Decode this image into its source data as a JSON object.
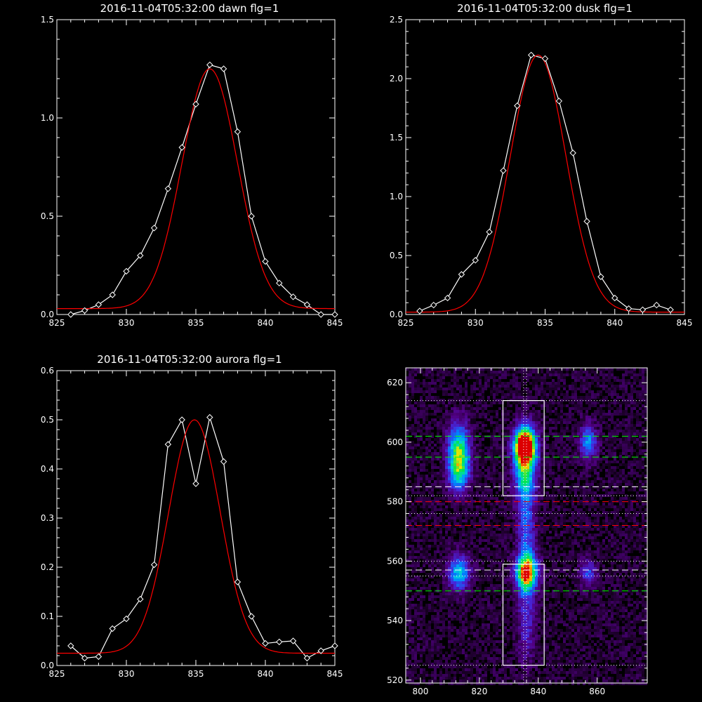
{
  "colors": {
    "background": "#000000",
    "axes": "#ffffff",
    "data_line": "#ffffff",
    "fit_line": "#ff0000",
    "green_lines": "#00ff00",
    "red_lines": "#ff0000",
    "white_lines": "#ffffff"
  },
  "chart_data": [
    {
      "type": "line",
      "title": "2016-11-04T05:32:00 dawn flg=1",
      "xlim": [
        825,
        845
      ],
      "ylim": [
        0,
        1.5
      ],
      "xticks": [
        825,
        830,
        835,
        840,
        845
      ],
      "xtick_labels": [
        "825",
        "830",
        "835",
        "840",
        "845"
      ],
      "yticks": [
        0,
        0.5,
        1.0,
        1.5
      ],
      "ytick_labels": [
        "0.0",
        "0.5",
        "1.0",
        "1.5"
      ],
      "series": [
        {
          "role": "data",
          "color": "#ffffff",
          "marker": "diamond",
          "x": [
            826,
            827,
            828,
            829,
            830,
            831,
            832,
            833,
            834,
            835,
            836,
            837,
            838,
            839,
            840,
            841,
            842,
            843,
            844,
            845
          ],
          "y": [
            0.0,
            0.02,
            0.05,
            0.1,
            0.22,
            0.3,
            0.44,
            0.64,
            0.85,
            1.07,
            1.27,
            1.25,
            0.93,
            0.5,
            0.27,
            0.16,
            0.09,
            0.05,
            0.0,
            0.0
          ]
        },
        {
          "role": "fit",
          "color": "#ff0000",
          "shape": "gaussian",
          "amplitude": 1.22,
          "center": 836.0,
          "sigma": 2.0,
          "offset": 0.03,
          "x_range": [
            825,
            845
          ]
        }
      ]
    },
    {
      "type": "line",
      "title": "2016-11-04T05:32:00 dusk flg=1",
      "xlim": [
        825,
        845
      ],
      "ylim": [
        0,
        2.5
      ],
      "xticks": [
        825,
        830,
        835,
        840,
        845
      ],
      "xtick_labels": [
        "825",
        "830",
        "835",
        "840",
        "845"
      ],
      "yticks": [
        0,
        0.5,
        1.0,
        1.5,
        2.0,
        2.5
      ],
      "ytick_labels": [
        "0.0",
        "0.5",
        "1.0",
        "1.5",
        "2.0",
        "2.5"
      ],
      "series": [
        {
          "role": "data",
          "color": "#ffffff",
          "marker": "diamond",
          "x": [
            826,
            827,
            828,
            829,
            830,
            831,
            832,
            833,
            834,
            835,
            836,
            837,
            838,
            839,
            840,
            841,
            842,
            843,
            844
          ],
          "y": [
            0.03,
            0.08,
            0.14,
            0.34,
            0.46,
            0.7,
            1.22,
            1.77,
            2.2,
            2.17,
            1.81,
            1.37,
            0.79,
            0.32,
            0.14,
            0.05,
            0.04,
            0.08,
            0.04
          ]
        },
        {
          "role": "fit",
          "color": "#ff0000",
          "shape": "gaussian",
          "amplitude": 2.18,
          "center": 834.5,
          "sigma": 2.0,
          "offset": 0.02,
          "x_range": [
            825,
            845
          ]
        }
      ]
    },
    {
      "type": "line",
      "title": "2016-11-04T05:32:00 aurora flg=1",
      "xlim": [
        825,
        845
      ],
      "ylim": [
        0,
        0.6
      ],
      "xticks": [
        825,
        830,
        835,
        840,
        845
      ],
      "xtick_labels": [
        "825",
        "830",
        "835",
        "840",
        "845"
      ],
      "yticks": [
        0,
        0.1,
        0.2,
        0.3,
        0.4,
        0.5,
        0.6
      ],
      "ytick_labels": [
        "0.0",
        "0.1",
        "0.2",
        "0.3",
        "0.4",
        "0.5",
        "0.6"
      ],
      "series": [
        {
          "role": "data",
          "color": "#ffffff",
          "marker": "diamond",
          "x": [
            826,
            827,
            828,
            829,
            830,
            831,
            832,
            833,
            834,
            835,
            836,
            837,
            838,
            839,
            840,
            841,
            842,
            843,
            844,
            845
          ],
          "y": [
            0.04,
            0.015,
            0.018,
            0.075,
            0.095,
            0.135,
            0.205,
            0.45,
            0.5,
            0.37,
            0.505,
            0.415,
            0.17,
            0.1,
            0.045,
            0.048,
            0.05,
            0.015,
            0.03,
            0.04
          ]
        },
        {
          "role": "fit",
          "color": "#ff0000",
          "shape": "gaussian",
          "amplitude": 0.475,
          "center": 834.9,
          "sigma": 1.85,
          "offset": 0.025,
          "x_range": [
            825,
            845
          ]
        }
      ]
    },
    {
      "type": "heatmap",
      "xlim": [
        795,
        877
      ],
      "ylim": [
        519,
        625
      ],
      "xticks": [
        800,
        820,
        840,
        860
      ],
      "xtick_labels": [
        "800",
        "820",
        "840",
        "860"
      ],
      "yticks": [
        520,
        540,
        560,
        580,
        600,
        620
      ],
      "ytick_labels": [
        "520",
        "540",
        "560",
        "580",
        "600",
        "620"
      ],
      "colormap": "rainbow",
      "blobs": [
        {
          "x": 813,
          "y": 598,
          "sx": 2.5,
          "sy": 6,
          "amp": 0.55
        },
        {
          "x": 813,
          "y": 590,
          "sx": 2.5,
          "sy": 5,
          "amp": 0.45
        },
        {
          "x": 813,
          "y": 556,
          "sx": 2.5,
          "sy": 4,
          "amp": 0.5
        },
        {
          "x": 835.5,
          "y": 599,
          "sx": 2.5,
          "sy": 4,
          "amp": 1.0
        },
        {
          "x": 835.5,
          "y": 591,
          "sx": 2.5,
          "sy": 8,
          "amp": 0.6
        },
        {
          "x": 836,
          "y": 556,
          "sx": 2.5,
          "sy": 4,
          "amp": 0.85
        },
        {
          "x": 836,
          "y": 568,
          "sx": 2.0,
          "sy": 10,
          "amp": 0.3
        },
        {
          "x": 836,
          "y": 540,
          "sx": 2.0,
          "sy": 10,
          "amp": 0.22
        },
        {
          "x": 857,
          "y": 600,
          "sx": 2.0,
          "sy": 4,
          "amp": 0.4
        },
        {
          "x": 857,
          "y": 556,
          "sx": 2.0,
          "sy": 3,
          "amp": 0.28
        }
      ],
      "boxes": [
        {
          "x0": 828,
          "x1": 842,
          "y0": 582,
          "y1": 614
        },
        {
          "x0": 828,
          "x1": 842,
          "y0": 525,
          "y1": 559
        }
      ],
      "vlines": [
        {
          "x": 835,
          "style": "dotted",
          "color": "#ffffff"
        },
        {
          "x": 836,
          "style": "dotted",
          "color": "#ffffff"
        }
      ],
      "hlines": [
        {
          "y": 614,
          "style": "dotted",
          "color": "#ffffff"
        },
        {
          "y": 602,
          "style": "dashed",
          "color": "#00ff00"
        },
        {
          "y": 595,
          "style": "dashed",
          "color": "#00ff00"
        },
        {
          "y": 585,
          "style": "dashed",
          "color": "#ffffff"
        },
        {
          "y": 582,
          "style": "dotted",
          "color": "#ffffff"
        },
        {
          "y": 580,
          "style": "dashed",
          "color": "#ff0000"
        },
        {
          "y": 576,
          "style": "dotted",
          "color": "#ffffff"
        },
        {
          "y": 572,
          "style": "dashed",
          "color": "#ff0000"
        },
        {
          "y": 560,
          "style": "dotted",
          "color": "#ffffff"
        },
        {
          "y": 557,
          "style": "dashed",
          "color": "#ffffff"
        },
        {
          "y": 555,
          "style": "dotted",
          "color": "#ffffff"
        },
        {
          "y": 550,
          "style": "dashed",
          "color": "#00ff00"
        },
        {
          "y": 525,
          "style": "dotted",
          "color": "#ffffff"
        }
      ]
    }
  ]
}
